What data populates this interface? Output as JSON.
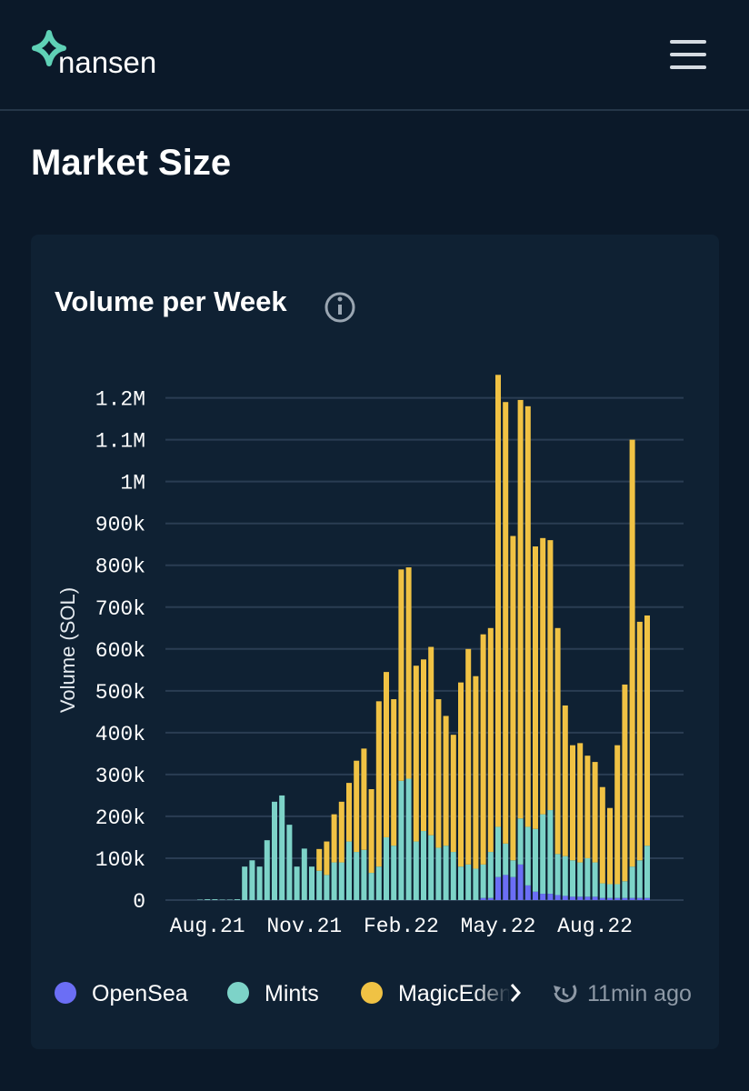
{
  "header": {
    "logo": "nansen"
  },
  "page_title": "Market Size",
  "card": {
    "updated": "11min ago"
  },
  "chart_data": {
    "type": "stacked-bar",
    "title": "Volume per Week",
    "y_label": "Volume (SOL)",
    "categories": [
      null,
      "Aug.21",
      null,
      null,
      null,
      null,
      null,
      null,
      null,
      null,
      null,
      null,
      null,
      null,
      "Nov.21",
      null,
      null,
      null,
      null,
      null,
      null,
      null,
      null,
      null,
      null,
      null,
      null,
      "Feb.22",
      null,
      null,
      null,
      null,
      null,
      null,
      null,
      null,
      null,
      null,
      null,
      null,
      "May.22",
      null,
      null,
      null,
      null,
      null,
      null,
      null,
      null,
      null,
      null,
      null,
      null,
      "Aug.22",
      null,
      null,
      null,
      null,
      null,
      null,
      null
    ],
    "series": [
      {
        "name": "OpenSea",
        "color": "#6b6ef5",
        "values": [
          0,
          0,
          0,
          0,
          0,
          0,
          0,
          0,
          0,
          0,
          0,
          0,
          0,
          0,
          0,
          0,
          0,
          0,
          0,
          0,
          0,
          0,
          0,
          0,
          0,
          0,
          0,
          0,
          0,
          0,
          0,
          0,
          0,
          0,
          0,
          0,
          0,
          0,
          5000,
          5000,
          55000,
          60000,
          55000,
          85000,
          35000,
          20000,
          15000,
          15000,
          12000,
          10000,
          8000,
          8000,
          8000,
          8000,
          5000,
          5000,
          5000,
          5000,
          5000,
          5000,
          5000
        ]
      },
      {
        "name": "Mints",
        "color": "#7dd3c8",
        "values": [
          1000,
          2000,
          2000,
          1000,
          1000,
          2000,
          80000,
          95000,
          80000,
          143000,
          235000,
          250000,
          180000,
          80000,
          123000,
          80000,
          70000,
          60000,
          90000,
          90000,
          140000,
          115000,
          120000,
          65000,
          80000,
          150000,
          130000,
          285000,
          290000,
          140000,
          165000,
          155000,
          125000,
          130000,
          115000,
          80000,
          85000,
          75000,
          80000,
          110000,
          120000,
          75000,
          40000,
          110000,
          140000,
          150000,
          190000,
          200000,
          98000,
          95000,
          87000,
          82000,
          92000,
          82000,
          35000,
          33000,
          33000,
          40000,
          75000,
          90000,
          125000
        ]
      },
      {
        "name": "MagicEden",
        "color": "#f0c244",
        "values": [
          0,
          0,
          0,
          0,
          0,
          0,
          0,
          0,
          0,
          0,
          0,
          0,
          0,
          0,
          0,
          0,
          52000,
          80000,
          115000,
          145000,
          140000,
          218000,
          242000,
          200000,
          395000,
          395000,
          350000,
          505000,
          505000,
          420000,
          410000,
          450000,
          355000,
          310000,
          280000,
          440000,
          515000,
          460000,
          550000,
          535000,
          1080000,
          1055000,
          775000,
          1000000,
          1005000,
          675000,
          660000,
          645000,
          540000,
          360000,
          275000,
          285000,
          245000,
          240000,
          230000,
          182000,
          332000,
          470000,
          1020000,
          570000,
          550000
        ]
      }
    ],
    "ylim": [
      0,
      1260000
    ],
    "yticks": [
      0,
      {
        "value": 100000,
        "label": "100k"
      },
      {
        "value": 200000,
        "label": "200k"
      },
      {
        "value": 300000,
        "label": "300k"
      },
      {
        "value": 400000,
        "label": "400k"
      },
      {
        "value": 500000,
        "label": "500k"
      },
      {
        "value": 600000,
        "label": "600k"
      },
      {
        "value": 700000,
        "label": "700k"
      },
      {
        "value": 800000,
        "label": "800k"
      },
      {
        "value": 900000,
        "label": "900k"
      },
      {
        "value": 1000000,
        "label": "1M"
      },
      {
        "value": 1100000,
        "label": "1.1M"
      },
      {
        "value": 1200000,
        "label": "1.2M"
      }
    ],
    "grid": true
  }
}
